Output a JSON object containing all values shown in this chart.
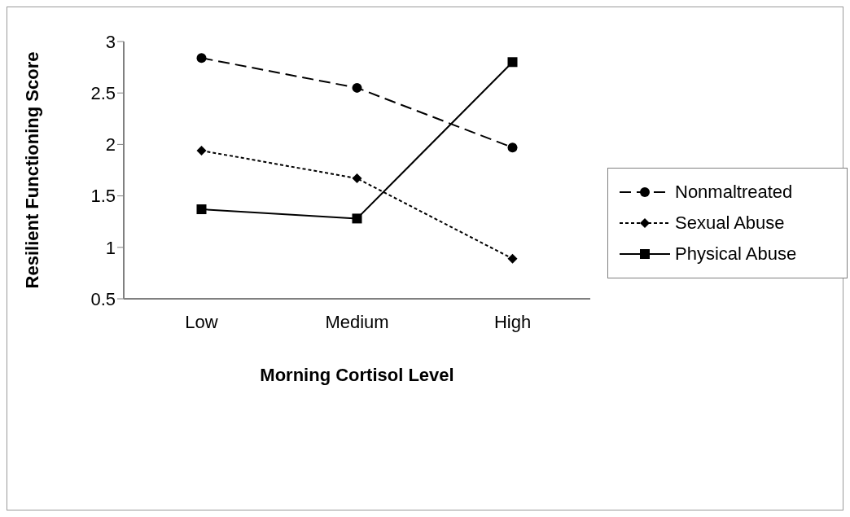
{
  "chart_data": {
    "type": "line",
    "xlabel": "Morning Cortisol Level",
    "ylabel": "Resilient Functioning Score",
    "categories": [
      "Low",
      "Medium",
      "High"
    ],
    "series": [
      {
        "name": "Nonmaltreated",
        "color": "#000000",
        "marker": "circle",
        "line_style": "dashed",
        "values": [
          2.84,
          2.55,
          1.97
        ]
      },
      {
        "name": "Sexual Abuse",
        "color": "#000000",
        "marker": "diamond",
        "line_style": "dotted",
        "values": [
          1.94,
          1.67,
          0.89
        ]
      },
      {
        "name": "Physical Abuse",
        "color": "#000000",
        "marker": "square",
        "line_style": "solid",
        "values": [
          1.37,
          1.28,
          2.8
        ]
      }
    ],
    "ylim": [
      0.5,
      3
    ],
    "yticks": [
      0.5,
      1,
      1.5,
      2,
      2.5,
      3
    ],
    "grid": false,
    "legend": "right"
  }
}
